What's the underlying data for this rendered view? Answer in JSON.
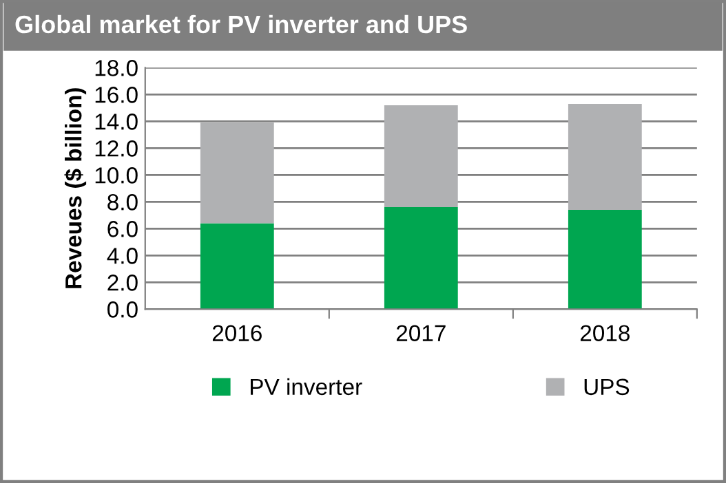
{
  "chart_data": {
    "type": "bar",
    "title": "Global market for PV inverter and UPS",
    "ylabel": "Reveues ($ billion)",
    "categories": [
      "2016",
      "2017",
      "2018"
    ],
    "series": [
      {
        "name": "PV inverter",
        "color": "#00a650",
        "values": [
          6.4,
          7.6,
          7.4
        ]
      },
      {
        "name": "UPS",
        "color": "#b0b1b3",
        "values": [
          7.5,
          7.6,
          7.9
        ]
      }
    ],
    "stacked": true,
    "ylim": [
      0,
      18
    ],
    "yticks": [
      {
        "value": 0,
        "label": "0.0"
      },
      {
        "value": 2,
        "label": "2.0"
      },
      {
        "value": 4,
        "label": "4.0"
      },
      {
        "value": 6,
        "label": "6.0"
      },
      {
        "value": 8,
        "label": "8.0"
      },
      {
        "value": 10,
        "label": "10.0"
      },
      {
        "value": 12,
        "label": "12.0"
      },
      {
        "value": 14,
        "label": "14.0"
      },
      {
        "value": 16,
        "label": "16.0"
      },
      {
        "value": 18,
        "label": "18.0"
      }
    ],
    "grid": "y",
    "legend": "bottom"
  }
}
